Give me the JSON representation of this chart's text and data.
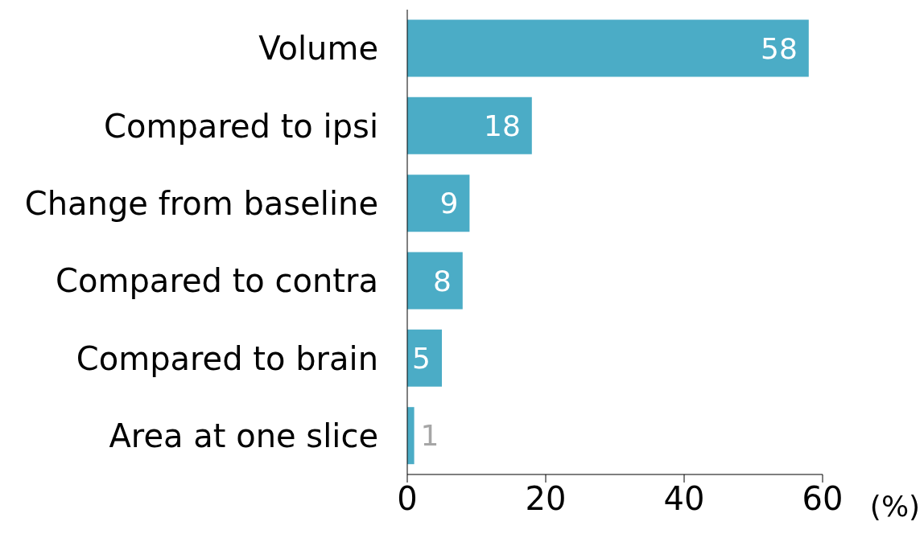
{
  "chart_data": {
    "type": "bar",
    "orientation": "horizontal",
    "xlabel": "(%)",
    "categories": [
      "Volume",
      "Compared to ipsi",
      "Change from baseline",
      "Compared to contra",
      "Compared to brain",
      "Area at one slice"
    ],
    "values": [
      58,
      18,
      9,
      8,
      5,
      1
    ],
    "color": "#4bacc6",
    "xlim": [
      0,
      60
    ],
    "xticks": [
      0,
      20,
      40,
      60
    ],
    "data_labels": true
  }
}
